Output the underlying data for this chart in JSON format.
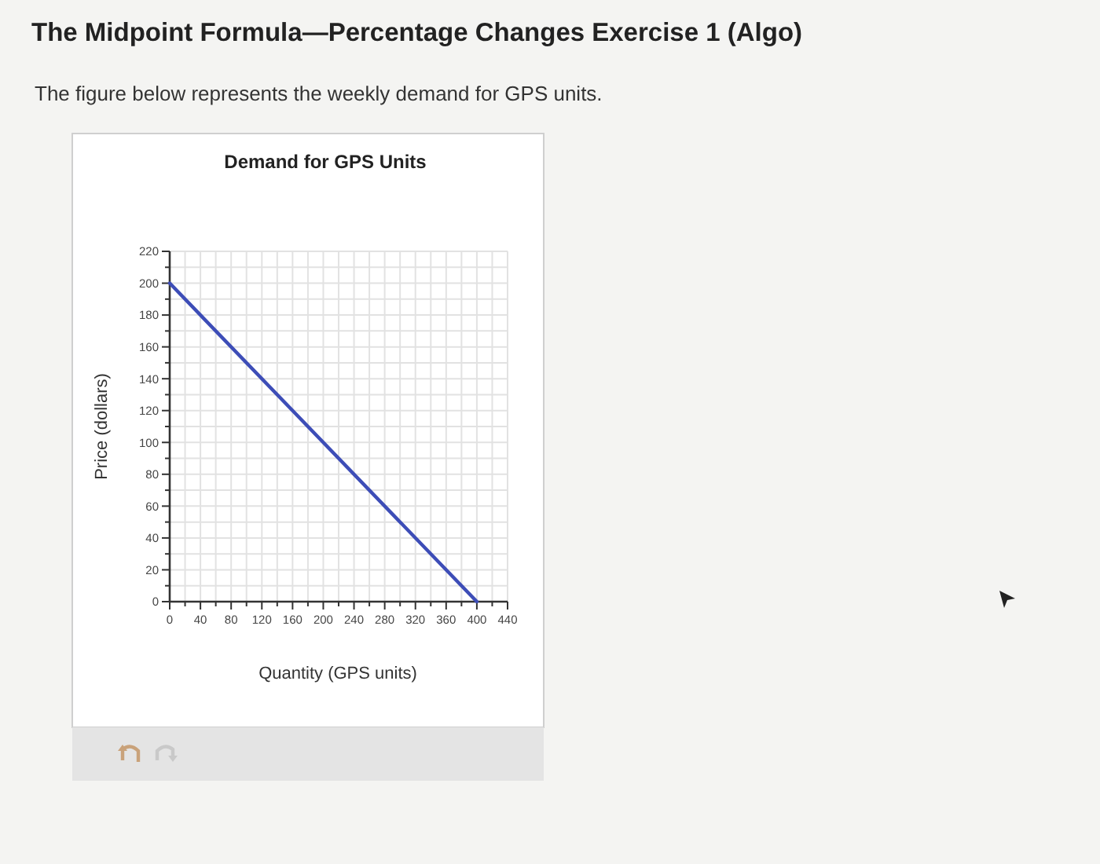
{
  "chart_data": {
    "type": "line",
    "title": "Demand for GPS Units",
    "xlabel": "Quantity (GPS units)",
    "ylabel": "Price (dollars)",
    "annotations": [
      "The Midpoint Formula—Percentage Changes Exercise 1 (Algo)",
      "The figure below represents the weekly demand for GPS units."
    ],
    "series": [
      {
        "color": "#3d4db7",
        "x": [
          0,
          400
        ],
        "values": [
          200,
          0
        ]
      }
    ],
    "xlim": [
      0,
      440
    ],
    "ylim": [
      0,
      220
    ],
    "xticks": [
      0,
      {
        "value": 20,
        "label": null
      },
      40,
      {
        "value": 60,
        "label": null
      },
      80,
      {
        "value": 100,
        "label": null
      },
      120,
      {
        "value": 140,
        "label": null
      },
      160,
      {
        "value": 180,
        "label": null
      },
      200,
      {
        "value": 220,
        "label": null
      },
      240,
      {
        "value": 260,
        "label": null
      },
      280,
      {
        "value": 300,
        "label": null
      },
      320,
      {
        "value": 340,
        "label": null
      },
      360,
      {
        "value": 380,
        "label": null
      },
      400,
      {
        "value": 420,
        "label": null
      },
      440
    ],
    "yticks": [
      0,
      {
        "value": 10,
        "label": null
      },
      20,
      {
        "value": 30,
        "label": null
      },
      40,
      {
        "value": 50,
        "label": null
      },
      60,
      {
        "value": 70,
        "label": null
      },
      80,
      {
        "value": 90,
        "label": null
      },
      100,
      {
        "value": 110,
        "label": null
      },
      120,
      {
        "value": 130,
        "label": null
      },
      140,
      {
        "value": 150,
        "label": null
      },
      160,
      {
        "value": 170,
        "label": null
      },
      180,
      {
        "value": 190,
        "label": null
      },
      200,
      {
        "value": 210,
        "label": null
      },
      220
    ],
    "grid": true,
    "marker": "none",
    "line_style": "solid"
  }
}
